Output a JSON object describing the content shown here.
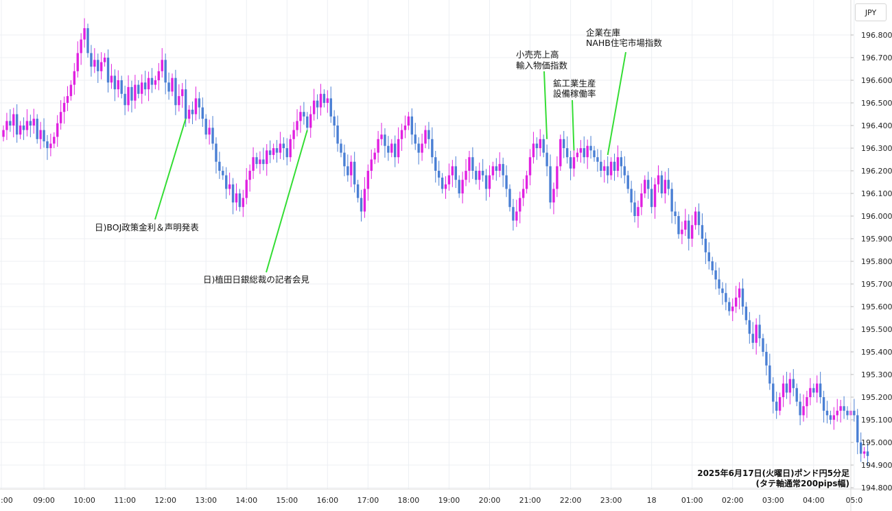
{
  "chart_data": {
    "type": "candlestick",
    "title": "",
    "currency_label": "JPY",
    "caption_line1": "2025年6月17日(火曜日)ポンド円5分足",
    "caption_line2": "(タテ軸通常200pips幅)",
    "ylim": [
      194.8,
      196.9
    ],
    "y_ticks": [
      "196.800",
      "196.700",
      "196.600",
      "196.500",
      "196.400",
      "196.300",
      "196.200",
      "196.100",
      "196.000",
      "195.900",
      "195.800",
      "195.700",
      "195.600",
      "195.500",
      "195.400",
      "195.300",
      "195.200",
      "195.100",
      "195.000",
      "194.900",
      "194.800"
    ],
    "x_ticks": [
      {
        "label": ":00",
        "bar": 0
      },
      {
        "label": "09:00",
        "bar": 12
      },
      {
        "label": "10:00",
        "bar": 24
      },
      {
        "label": "11:00",
        "bar": 36
      },
      {
        "label": "12:00",
        "bar": 48
      },
      {
        "label": "13:00",
        "bar": 60
      },
      {
        "label": "14:00",
        "bar": 72
      },
      {
        "label": "15:00",
        "bar": 84
      },
      {
        "label": "16:00",
        "bar": 96
      },
      {
        "label": "17:00",
        "bar": 108
      },
      {
        "label": "18:00",
        "bar": 120
      },
      {
        "label": "19:00",
        "bar": 132
      },
      {
        "label": "20:00",
        "bar": 144
      },
      {
        "label": "21:00",
        "bar": 156
      },
      {
        "label": "22:00",
        "bar": 168
      },
      {
        "label": "23:00",
        "bar": 180
      },
      {
        "label": "18",
        "bar": 192
      },
      {
        "label": "01:00",
        "bar": 204
      },
      {
        "label": "02:00",
        "bar": 216
      },
      {
        "label": "03:00",
        "bar": 228
      },
      {
        "label": "04:00",
        "bar": 240
      },
      {
        "label": "05:0",
        "bar": 252
      }
    ],
    "candle_colors": {
      "up": "#e020e0",
      "down": "#4a7fd4"
    },
    "annotation_color": "#33dd33",
    "closes": [
      196.38,
      196.42,
      196.4,
      196.45,
      196.36,
      196.4,
      196.38,
      196.42,
      196.4,
      196.43,
      196.34,
      196.38,
      196.33,
      196.3,
      196.32,
      196.35,
      196.41,
      196.46,
      196.5,
      196.53,
      196.58,
      196.64,
      196.72,
      196.78,
      196.83,
      196.72,
      196.66,
      196.69,
      196.64,
      196.68,
      196.7,
      196.59,
      196.62,
      196.56,
      196.6,
      196.54,
      196.49,
      196.57,
      196.51,
      196.58,
      196.54,
      196.59,
      196.56,
      196.61,
      196.58,
      196.6,
      196.64,
      196.69,
      196.59,
      196.55,
      196.61,
      196.49,
      196.53,
      196.56,
      196.43,
      196.47,
      196.45,
      196.52,
      196.48,
      196.43,
      196.36,
      196.39,
      196.32,
      196.24,
      196.2,
      196.18,
      196.12,
      196.14,
      196.06,
      196.1,
      196.04,
      196.08,
      196.16,
      196.2,
      196.26,
      196.23,
      196.25,
      196.23,
      196.29,
      196.27,
      196.3,
      196.28,
      196.32,
      196.3,
      196.26,
      196.34,
      196.38,
      196.42,
      196.46,
      196.44,
      196.39,
      196.45,
      196.51,
      196.48,
      196.54,
      196.5,
      196.52,
      196.44,
      196.4,
      196.32,
      196.28,
      196.22,
      196.18,
      196.24,
      196.14,
      196.08,
      196.02,
      196.12,
      196.2,
      196.25,
      196.28,
      196.34,
      196.36,
      196.31,
      196.28,
      196.32,
      196.26,
      196.34,
      196.38,
      196.4,
      196.44,
      196.36,
      196.32,
      196.28,
      196.32,
      196.38,
      196.34,
      196.26,
      196.2,
      196.17,
      196.12,
      196.14,
      196.18,
      196.22,
      196.16,
      196.1,
      196.16,
      196.2,
      196.26,
      196.2,
      196.16,
      196.2,
      196.18,
      196.12,
      196.18,
      196.22,
      196.2,
      196.23,
      196.18,
      196.12,
      196.04,
      195.98,
      196.02,
      196.08,
      196.12,
      196.18,
      196.26,
      196.32,
      196.3,
      196.34,
      196.28,
      196.22,
      196.06,
      196.12,
      196.22,
      196.34,
      196.3,
      196.26,
      196.21,
      196.26,
      196.28,
      196.3,
      196.26,
      196.31,
      196.29,
      196.26,
      196.24,
      196.2,
      196.22,
      196.18,
      196.24,
      196.2,
      196.26,
      196.22,
      196.18,
      196.12,
      196.06,
      196.0,
      196.04,
      196.1,
      196.16,
      196.12,
      196.04,
      196.14,
      196.18,
      196.1,
      196.16,
      196.12,
      196.02,
      196.0,
      195.92,
      195.94,
      195.98,
      195.9,
      195.96,
      196.02,
      195.96,
      195.9,
      195.84,
      195.8,
      195.76,
      195.72,
      195.68,
      195.66,
      195.62,
      195.58,
      195.6,
      195.64,
      195.68,
      195.6,
      195.54,
      195.48,
      195.44,
      195.52,
      195.46,
      195.4,
      195.34,
      195.26,
      195.18,
      195.14,
      195.2,
      195.26,
      195.22,
      195.28,
      195.24,
      195.18,
      195.12,
      195.16,
      195.2,
      195.24,
      195.22,
      195.26,
      195.2,
      195.14,
      195.12,
      195.1,
      195.12,
      195.14,
      195.16,
      195.14,
      195.12,
      195.14,
      195.12,
      195.0,
      194.95,
      194.96,
      194.94
    ]
  },
  "annotations": [
    {
      "lines": [
        "日)BOJ政策金利＆声明発表"
      ]
    },
    {
      "lines": [
        "日)植田日銀総裁の記者会見"
      ]
    },
    {
      "lines": [
        "小売売上高",
        "輸入物価指数"
      ]
    },
    {
      "lines": [
        "鉱工業生産",
        "設備稼働率"
      ]
    },
    {
      "lines": [
        "企業在庫",
        "NAHB住宅市場指数"
      ]
    }
  ]
}
